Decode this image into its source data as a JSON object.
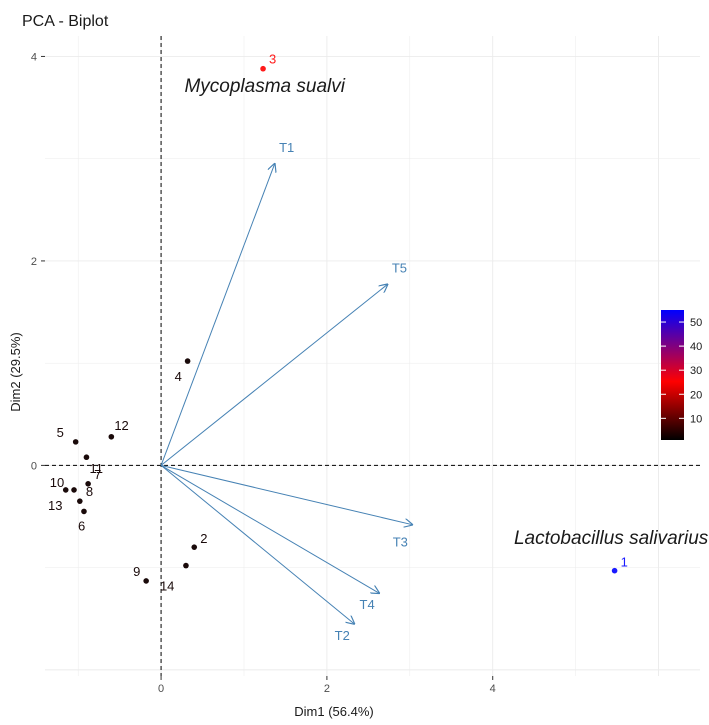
{
  "chart_data": {
    "type": "scatter",
    "title": "PCA - Biplot",
    "xlabel": "Dim1 (56.4%)",
    "ylabel": "Dim2 (29.5%)",
    "xlim": [
      -1.4,
      6.5
    ],
    "ylim": [
      -2.06,
      4.2
    ],
    "xticks": [
      0,
      2,
      4
    ],
    "yticks": [
      0,
      2,
      4
    ],
    "grid": true,
    "points": [
      {
        "label": "1",
        "x": 5.47,
        "y": -1.03,
        "contrib": 53,
        "color": "#1a1aff"
      },
      {
        "label": "2",
        "x": 0.4,
        "y": -0.8,
        "contrib": 2,
        "color": "#1a0a0a"
      },
      {
        "label": "3",
        "x": 1.23,
        "y": 3.88,
        "contrib": 25,
        "color": "#ff1a1a"
      },
      {
        "label": "4",
        "x": 0.32,
        "y": 1.02,
        "contrib": 2,
        "color": "#1a0a0a"
      },
      {
        "label": "5",
        "x": -1.03,
        "y": 0.23,
        "contrib": 2,
        "color": "#1a0a0a"
      },
      {
        "label": "6",
        "x": -0.93,
        "y": -0.45,
        "contrib": 2,
        "color": "#1a0a0a"
      },
      {
        "label": "7",
        "x": -0.88,
        "y": -0.18,
        "contrib": 2,
        "color": "#1a0a0a"
      },
      {
        "label": "8",
        "x": -0.98,
        "y": -0.35,
        "contrib": 2,
        "color": "#1a0a0a"
      },
      {
        "label": "9",
        "x": -0.18,
        "y": -1.13,
        "contrib": 2,
        "color": "#1a0a0a"
      },
      {
        "label": "10",
        "x": -1.15,
        "y": -0.24,
        "contrib": 2,
        "color": "#1a0a0a"
      },
      {
        "label": "11",
        "x": -0.9,
        "y": 0.08,
        "contrib": 2,
        "color": "#1a0a0a"
      },
      {
        "label": "12",
        "x": -0.6,
        "y": 0.28,
        "contrib": 2,
        "color": "#1a0a0a"
      },
      {
        "label": "13",
        "x": -1.05,
        "y": -0.24,
        "contrib": 2,
        "color": "#1a0a0a"
      },
      {
        "label": "14",
        "x": 0.3,
        "y": -0.98,
        "contrib": 2,
        "color": "#1a0a0a"
      }
    ],
    "vectors": [
      {
        "name": "T1",
        "x": 1.37,
        "y": 2.95
      },
      {
        "name": "T2",
        "x": 2.33,
        "y": -1.55
      },
      {
        "name": "T3",
        "x": 3.03,
        "y": -0.58
      },
      {
        "name": "T4",
        "x": 2.63,
        "y": -1.25
      },
      {
        "name": "T5",
        "x": 2.73,
        "y": 1.77
      }
    ],
    "annotations": [
      {
        "text": "Mycoplasma sualvi",
        "x": 1.25,
        "y": 3.71
      },
      {
        "text": "Lactobacillus salivarius",
        "x": 6.6,
        "y": -0.71
      }
    ],
    "colorbar": {
      "ticks": [
        10,
        20,
        30,
        40,
        50
      ],
      "ticklabels": [
        "10",
        "20",
        "30",
        "40",
        "50"
      ],
      "range": [
        1,
        55
      ],
      "colors": [
        "#000000",
        "#ff0000",
        "#0000ff"
      ]
    },
    "vector_color": "#4682B4"
  }
}
